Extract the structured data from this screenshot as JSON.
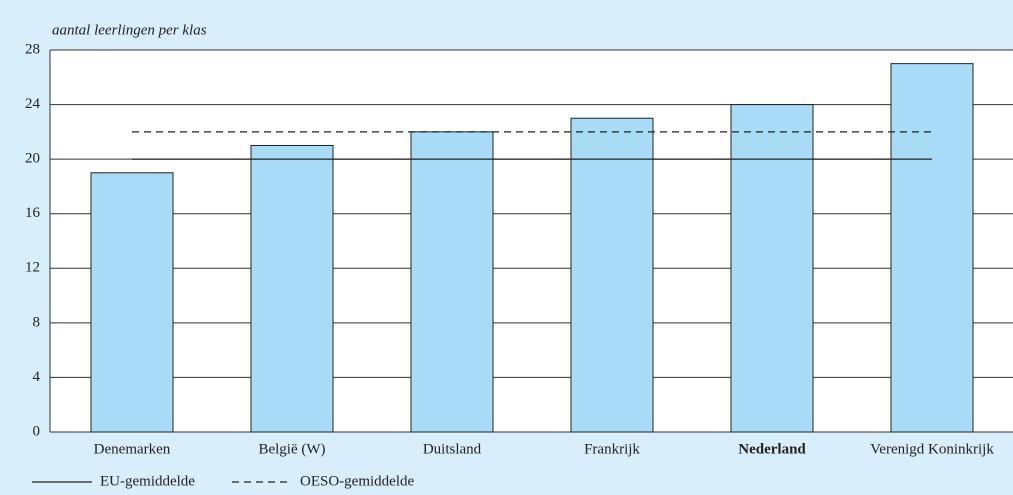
{
  "chart_data": {
    "type": "bar",
    "axis_label": "aantal leerlingen per klas",
    "categories": [
      "Denemarken",
      "België (W)",
      "Duitsland",
      "Frankrijk",
      "Nederland",
      "Verenigd Koninkrijk"
    ],
    "values": [
      19,
      21,
      22,
      23,
      24,
      27
    ],
    "color": "#a8dcf6",
    "bold_category": "Nederland",
    "ylim": [
      0,
      28
    ],
    "yticks": [
      0,
      4,
      8,
      12,
      16,
      20,
      24,
      28
    ],
    "grid": true,
    "reference_lines": [
      {
        "name": "EU-gemiddelde",
        "value": 20,
        "style": "solid"
      },
      {
        "name": "OESO-gemiddelde",
        "value": 22,
        "style": "dashed"
      }
    ],
    "legend": "bottom"
  }
}
